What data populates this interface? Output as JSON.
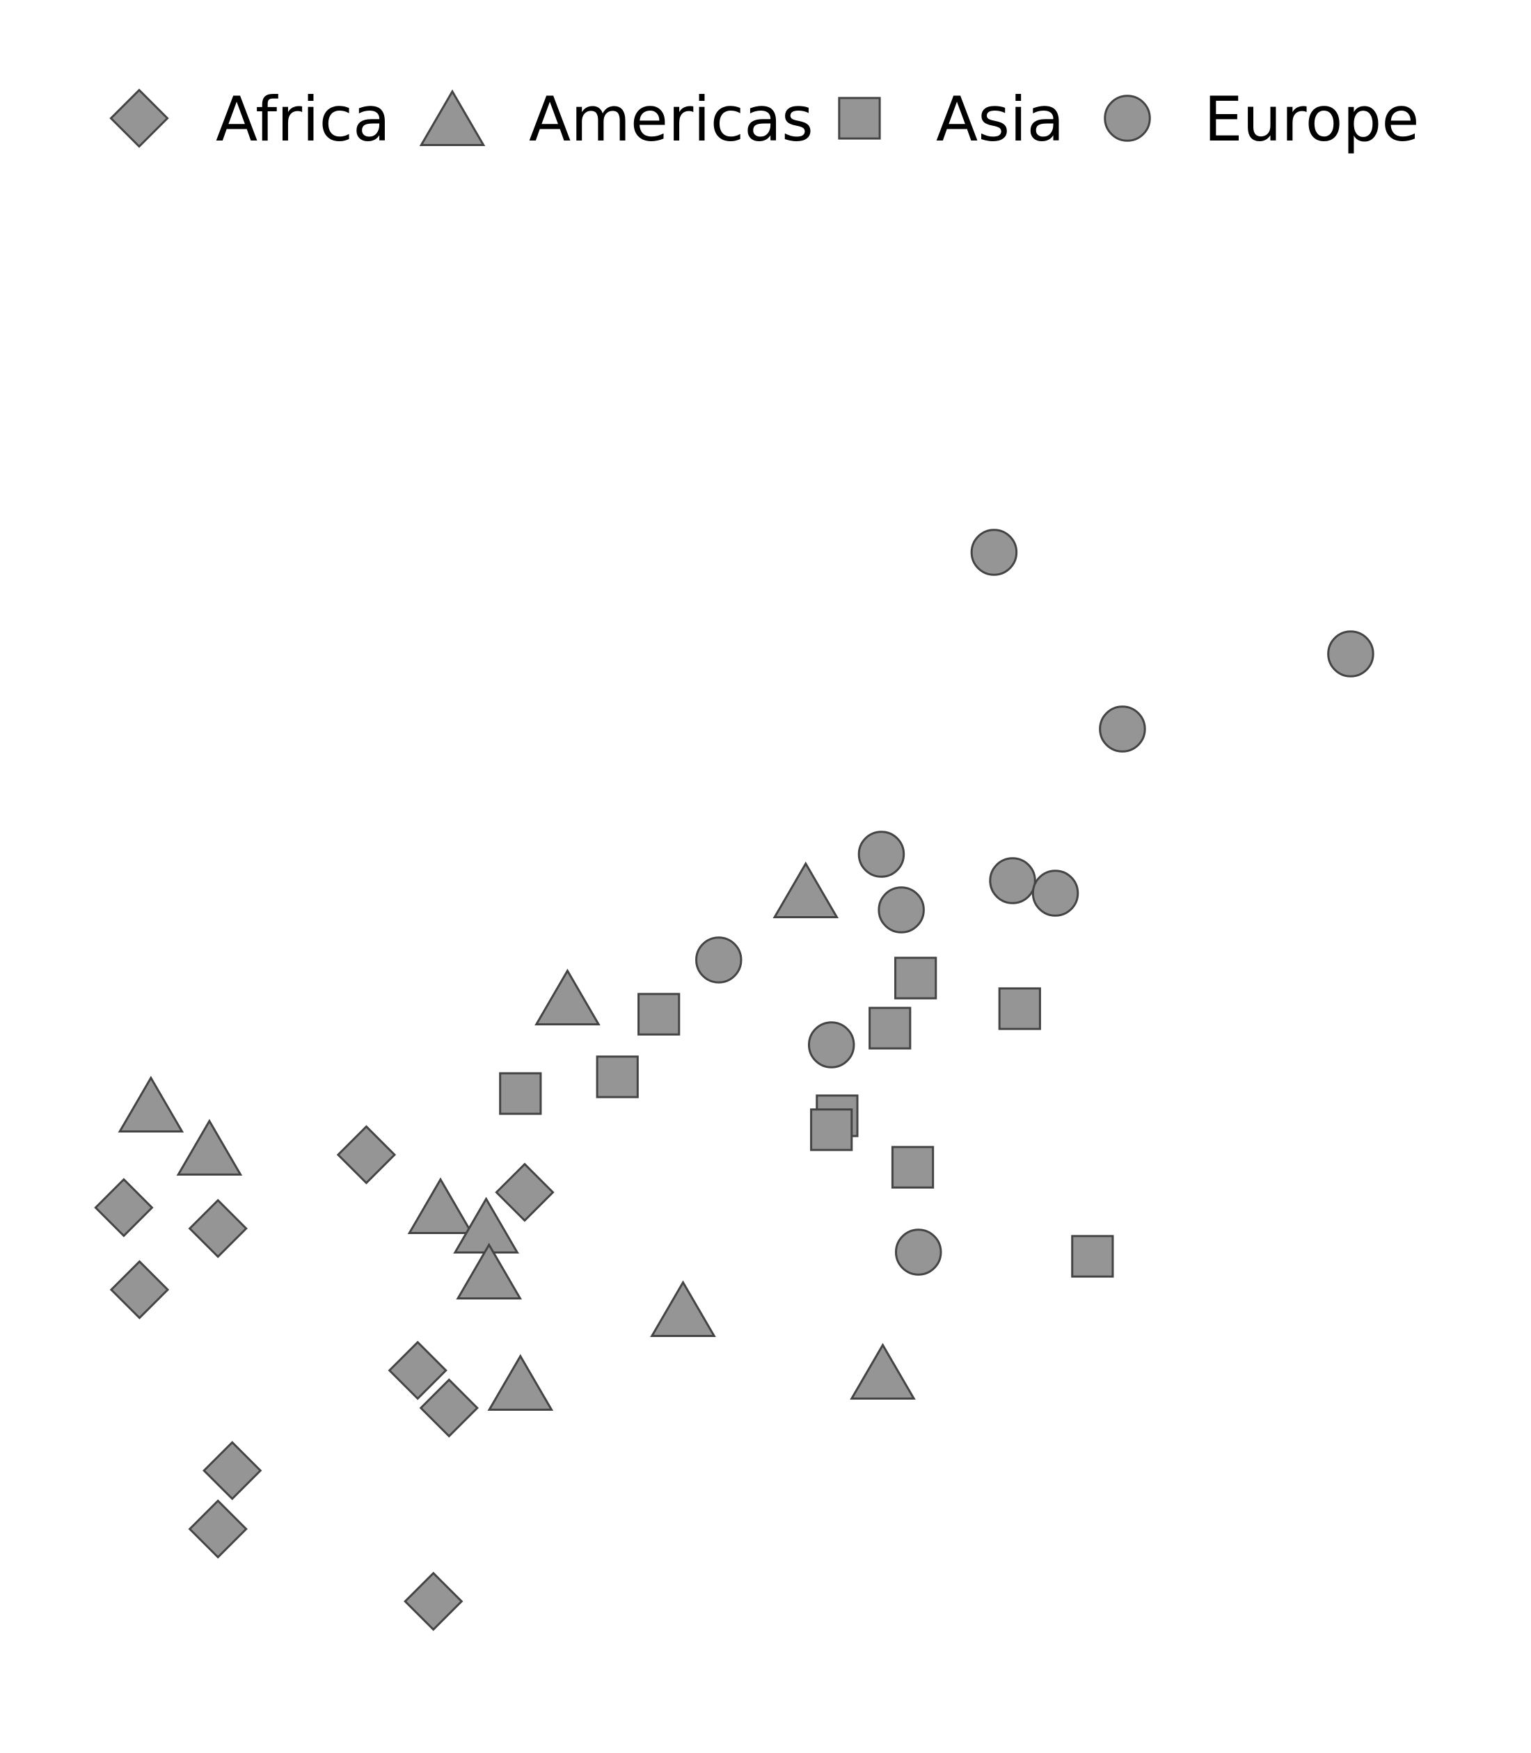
{
  "chart_data": {
    "type": "scatter",
    "title": "",
    "xlabel": "",
    "ylabel": "",
    "grid": false,
    "axes_visible": false,
    "legend_placement": "top",
    "xlim": [
      0,
      100
    ],
    "ylim": [
      0,
      100
    ],
    "marker_fill": "#959595",
    "marker_stroke": "#444444",
    "series": [
      {
        "name": "Africa",
        "marker": "diamond",
        "points": [
          {
            "x": 20.8,
            "y": 38.0
          },
          {
            "x": 3.8,
            "y": 34.2
          },
          {
            "x": 10.4,
            "y": 32.7
          },
          {
            "x": 4.9,
            "y": 28.3
          },
          {
            "x": 31.9,
            "y": 35.3
          },
          {
            "x": 24.4,
            "y": 22.5
          },
          {
            "x": 26.6,
            "y": 19.8
          },
          {
            "x": 11.4,
            "y": 15.3
          },
          {
            "x": 10.4,
            "y": 11.1
          },
          {
            "x": 25.5,
            "y": 5.9
          }
        ]
      },
      {
        "name": "Americas",
        "marker": "triangle",
        "points": [
          {
            "x": 51.6,
            "y": 57.0
          },
          {
            "x": 34.9,
            "y": 49.3
          },
          {
            "x": 5.7,
            "y": 41.6
          },
          {
            "x": 9.8,
            "y": 38.5
          },
          {
            "x": 26.0,
            "y": 34.3
          },
          {
            "x": 29.2,
            "y": 32.9
          },
          {
            "x": 29.4,
            "y": 29.6
          },
          {
            "x": 43.0,
            "y": 26.9
          },
          {
            "x": 31.6,
            "y": 21.6
          },
          {
            "x": 57.0,
            "y": 22.4
          }
        ]
      },
      {
        "name": "Asia",
        "marker": "square",
        "points": [
          {
            "x": 59.3,
            "y": 50.7
          },
          {
            "x": 66.6,
            "y": 48.5
          },
          {
            "x": 41.3,
            "y": 48.1
          },
          {
            "x": 57.5,
            "y": 47.1
          },
          {
            "x": 38.4,
            "y": 43.6
          },
          {
            "x": 31.6,
            "y": 42.4
          },
          {
            "x": 53.8,
            "y": 40.8
          },
          {
            "x": 53.4,
            "y": 39.8
          },
          {
            "x": 59.1,
            "y": 37.1
          },
          {
            "x": 71.7,
            "y": 30.7
          }
        ]
      },
      {
        "name": "Europe",
        "marker": "circle",
        "points": [
          {
            "x": 64.8,
            "y": 81.3
          },
          {
            "x": 89.8,
            "y": 74.0
          },
          {
            "x": 73.8,
            "y": 68.6
          },
          {
            "x": 56.9,
            "y": 59.6
          },
          {
            "x": 66.1,
            "y": 57.7
          },
          {
            "x": 69.1,
            "y": 56.8
          },
          {
            "x": 58.3,
            "y": 55.6
          },
          {
            "x": 45.5,
            "y": 52.0
          },
          {
            "x": 53.4,
            "y": 45.9
          },
          {
            "x": 59.5,
            "y": 31.0
          }
        ]
      }
    ]
  }
}
